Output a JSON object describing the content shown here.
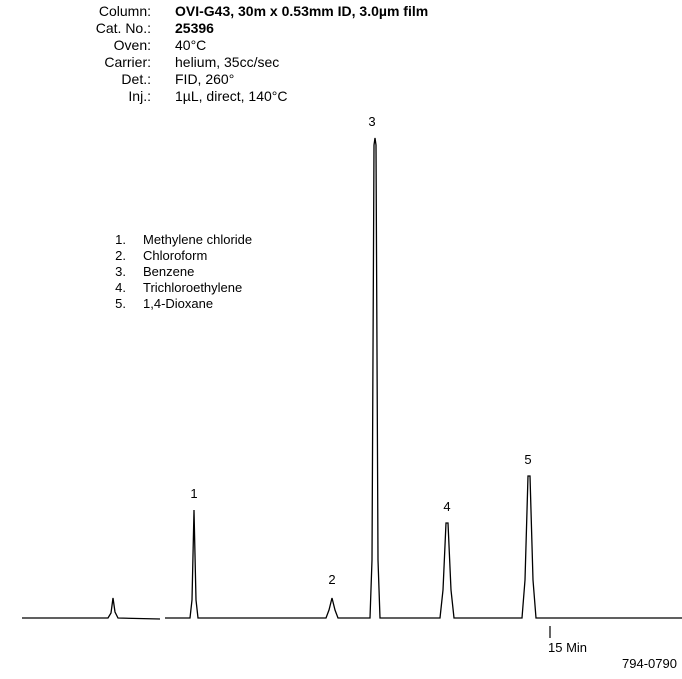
{
  "header": {
    "rows": [
      {
        "label": "Column:",
        "value": "OVI-G43, 30m x 0.53mm ID, 3.0µm film"
      },
      {
        "label": "Cat. No.:",
        "value": "25396"
      },
      {
        "label": "Oven:",
        "value": "40°C"
      },
      {
        "label": "Carrier:",
        "value": "helium, 35cc/sec"
      },
      {
        "label": "Det.:",
        "value": "FID, 260°"
      },
      {
        "label": "Inj.:",
        "value": "1µL, direct, 140°C"
      }
    ]
  },
  "compounds": [
    {
      "number": "1.",
      "name": "Methylene chloride"
    },
    {
      "number": "2.",
      "name": "Chloroform"
    },
    {
      "number": "3.",
      "name": "Benzene"
    },
    {
      "number": "4.",
      "name": "Trichloroethylene"
    },
    {
      "number": "5.",
      "name": "1,4-Dioxane"
    }
  ],
  "peak_labels": [
    "1",
    "2",
    "3",
    "4",
    "5"
  ],
  "time_marker": "15 Min",
  "figure_id": "794-0790"
}
